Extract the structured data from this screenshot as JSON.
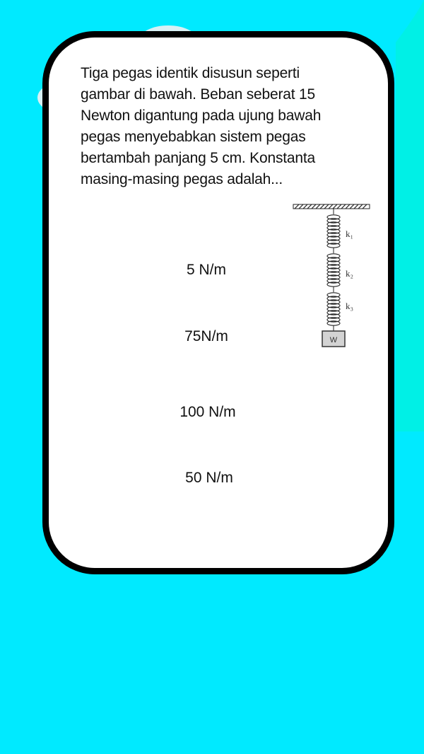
{
  "colors": {
    "background": "#00eaff",
    "card": "#ffffff",
    "card_border": "#000000",
    "decor": "#d9f1f5",
    "decor_alt": "#00f0e6"
  },
  "question": {
    "text": "Tiga pegas identik disusun seperti gambar di bawah. Beban seberat 15 Newton digantung pada ujung bawah pegas menyebabkan sistem pegas bertambah panjang 5 cm. Konstanta masing-masing pegas adalah..."
  },
  "figure": {
    "labels": {
      "k1": "k₁",
      "k2": "k₂",
      "k3": "k₃",
      "weight": "W"
    }
  },
  "options": [
    {
      "label": "5 N/m"
    },
    {
      "label": "75N/m"
    },
    {
      "label": "100 N/m"
    },
    {
      "label": "50 N/m"
    }
  ]
}
